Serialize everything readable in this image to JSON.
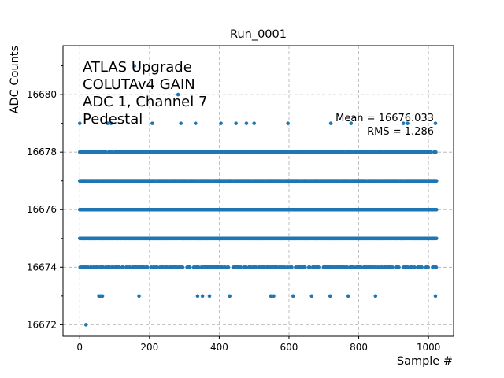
{
  "chart_data": {
    "type": "scatter",
    "title": "Run_0001",
    "xlabel": "Sample #",
    "ylabel": "ADC Counts",
    "xlim": [
      -48,
      1072
    ],
    "ylim": [
      16671.6,
      16681.7
    ],
    "x_ticks": [
      0,
      200,
      400,
      600,
      800,
      1000
    ],
    "y_ticks": [
      16672,
      16674,
      16676,
      16678,
      16680
    ],
    "grid": true,
    "marker_color": "#1f77b4",
    "annotation_lines": [
      "ATLAS Upgrade",
      "COLUTAv4 GAIN",
      "ADC 1, Channel 7",
      "Pedestal"
    ],
    "stats": {
      "mean": "Mean = 16676.033",
      "rms": "RMS = 1.286"
    },
    "n_samples": 1024,
    "outliers": [
      {
        "x": 18,
        "y": 16672
      },
      {
        "x": 157,
        "y": 16681
      },
      {
        "x": 282,
        "y": 16680
      },
      {
        "x": 0,
        "y": 16679
      },
      {
        "x": 80,
        "y": 16679
      },
      {
        "x": 90,
        "y": 16679
      },
      {
        "x": 208,
        "y": 16679
      },
      {
        "x": 290,
        "y": 16679
      },
      {
        "x": 332,
        "y": 16679
      },
      {
        "x": 405,
        "y": 16679
      },
      {
        "x": 448,
        "y": 16679
      },
      {
        "x": 478,
        "y": 16679
      },
      {
        "x": 500,
        "y": 16679
      },
      {
        "x": 597,
        "y": 16679
      },
      {
        "x": 720,
        "y": 16679
      },
      {
        "x": 778,
        "y": 16679
      },
      {
        "x": 928,
        "y": 16679
      },
      {
        "x": 940,
        "y": 16679
      },
      {
        "x": 1020,
        "y": 16679
      },
      {
        "x": 55,
        "y": 16673
      },
      {
        "x": 60,
        "y": 16673
      },
      {
        "x": 65,
        "y": 16673
      },
      {
        "x": 170,
        "y": 16673
      },
      {
        "x": 338,
        "y": 16673
      },
      {
        "x": 352,
        "y": 16673
      },
      {
        "x": 372,
        "y": 16673
      },
      {
        "x": 430,
        "y": 16673
      },
      {
        "x": 548,
        "y": 16673
      },
      {
        "x": 556,
        "y": 16673
      },
      {
        "x": 612,
        "y": 16673
      },
      {
        "x": 665,
        "y": 16673
      },
      {
        "x": 718,
        "y": 16673
      },
      {
        "x": 770,
        "y": 16673
      },
      {
        "x": 848,
        "y": 16673
      },
      {
        "x": 1020,
        "y": 16673
      }
    ],
    "band_density": {
      "16674": 0.32,
      "16675": 0.88,
      "16676": 0.97,
      "16677": 0.9,
      "16678": 0.55
    }
  }
}
